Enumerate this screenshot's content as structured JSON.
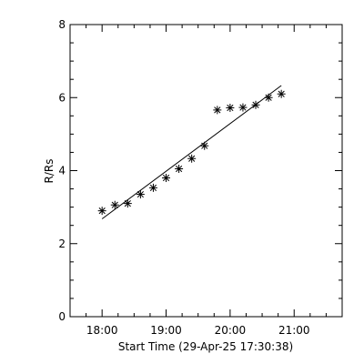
{
  "chart_data": {
    "type": "scatter",
    "xlabel": "Start Time (29-Apr-25 17:30:38)",
    "ylabel": "R/Rs",
    "xlim": [
      "17:30",
      "21:45"
    ],
    "ylim": [
      0,
      8
    ],
    "x_ticks": [
      "18:00",
      "19:00",
      "20:00",
      "21:00"
    ],
    "y_ticks": [
      "0",
      "2",
      "4",
      "6",
      "8"
    ],
    "grid": false,
    "legend": "none",
    "series": [
      {
        "marker": "asterisk",
        "points": [
          {
            "x": "18:00",
            "y": 2.9
          },
          {
            "x": "18:12",
            "y": 3.06
          },
          {
            "x": "18:24",
            "y": 3.1
          },
          {
            "x": "18:36",
            "y": 3.35
          },
          {
            "x": "18:48",
            "y": 3.53
          },
          {
            "x": "19:00",
            "y": 3.8
          },
          {
            "x": "19:12",
            "y": 4.05
          },
          {
            "x": "19:24",
            "y": 4.33
          },
          {
            "x": "19:36",
            "y": 4.68
          },
          {
            "x": "19:48",
            "y": 5.66
          },
          {
            "x": "20:00",
            "y": 5.72
          },
          {
            "x": "20:12",
            "y": 5.73
          },
          {
            "x": "20:24",
            "y": 5.8
          },
          {
            "x": "20:36",
            "y": 6.0
          },
          {
            "x": "20:48",
            "y": 6.1
          }
        ]
      }
    ],
    "fit_line": [
      {
        "x": "18:00",
        "y": 2.68
      },
      {
        "x": "20:48",
        "y": 6.33
      }
    ],
    "colors": {
      "axes": "#000000",
      "marks": "#000000",
      "background": "#ffffff"
    }
  }
}
